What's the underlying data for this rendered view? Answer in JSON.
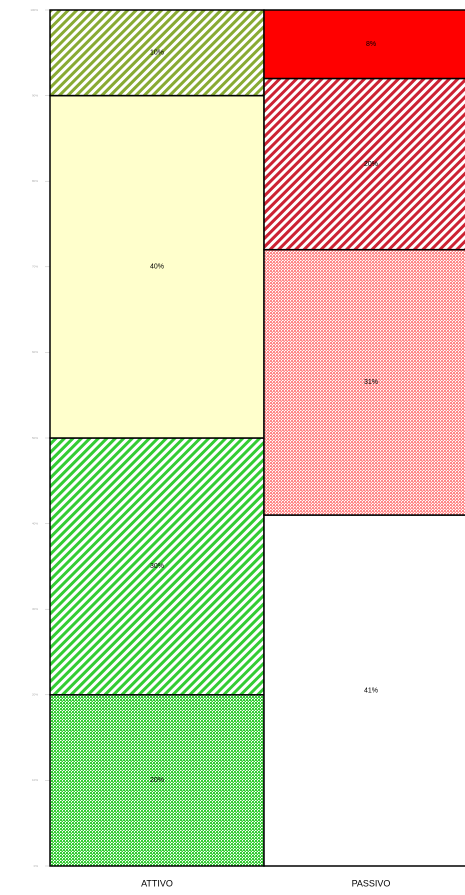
{
  "chart_data": {
    "type": "stacked_bar",
    "categories": [
      "ATTIVO",
      "PASSIVO"
    ],
    "series": [
      {
        "values": [
          20,
          41
        ],
        "value_labels": [
          "20%",
          "41%"
        ],
        "colors": [
          "#33cc33",
          "#ffffff"
        ],
        "patterns": [
          "dots",
          "solid"
        ]
      },
      {
        "values": [
          30,
          31
        ],
        "value_labels": [
          "30%",
          "31%"
        ],
        "colors": [
          "#33cc33",
          "#ff8888"
        ],
        "patterns": [
          "stripes",
          "dots"
        ]
      },
      {
        "values": [
          40,
          20
        ],
        "value_labels": [
          "40%",
          "20%"
        ],
        "colors": [
          "#ffffcc",
          "#cc2233"
        ],
        "patterns": [
          "solid",
          "stripes"
        ]
      },
      {
        "values": [
          10,
          8
        ],
        "value_labels": [
          "10%",
          "8%"
        ],
        "colors": [
          "#88aa33",
          "#ff0000"
        ],
        "patterns": [
          "stripes",
          "solid"
        ]
      }
    ],
    "ylim": [
      0,
      100
    ],
    "yticks": [
      {
        "value": 0,
        "label": "0%"
      },
      {
        "value": 10,
        "label": "10%"
      },
      {
        "value": 20,
        "label": "20%"
      },
      {
        "value": 30,
        "label": "30%"
      },
      {
        "value": 40,
        "label": "40%"
      },
      {
        "value": 50,
        "label": "50%"
      },
      {
        "value": 60,
        "label": "60%"
      },
      {
        "value": 70,
        "label": "70%"
      },
      {
        "value": 80,
        "label": "80%"
      },
      {
        "value": 90,
        "label": "90%"
      },
      {
        "value": 100,
        "label": "100%"
      }
    ]
  }
}
